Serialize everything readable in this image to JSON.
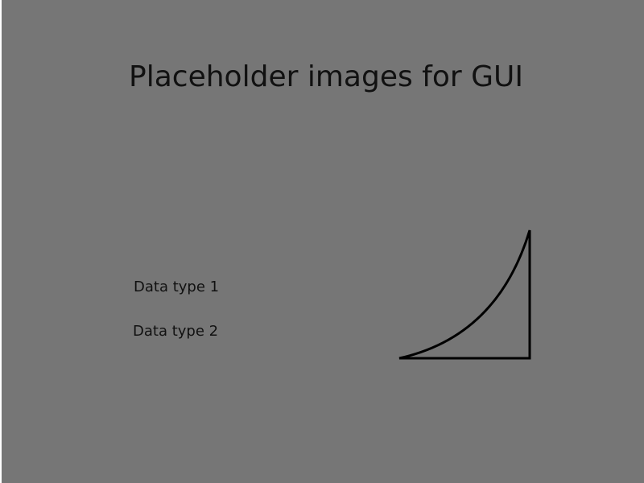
{
  "window": {
    "title": "Placeholder images for GUI",
    "background_color": "#767676"
  },
  "labels": [
    "Data type 1",
    "Data type 2"
  ],
  "placeholder_image": {
    "icon": "curve-triangle-icon",
    "stroke_color": "#000000"
  }
}
